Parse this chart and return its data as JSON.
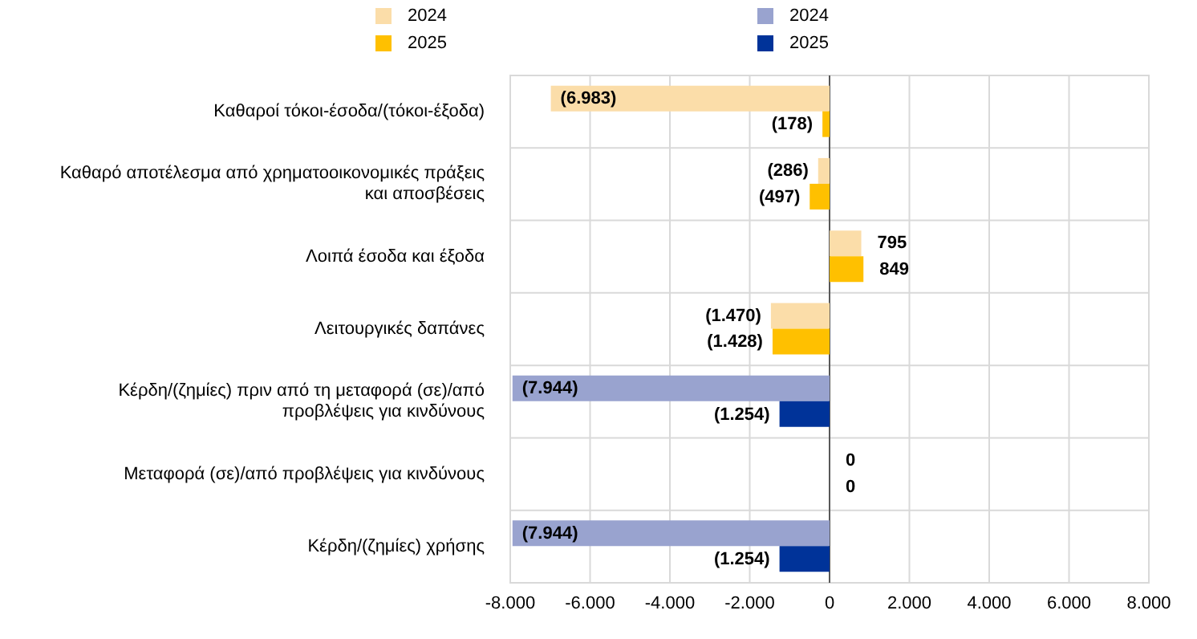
{
  "chart_data": {
    "type": "bar",
    "orientation": "horizontal",
    "categories": [
      "Καθαροί τόκοι-έσοδα/(τόκοι-έξοδα)",
      "Καθαρό αποτέλεσμα από χρηματοοικονομικές πράξεις και αποσβέσεις",
      "Λοιπά έσοδα και έξοδα",
      "Λειτουργικές δαπάνες",
      "Κέρδη/(ζημίες) πριν από τη μεταφορά (σε)/από προβλέψεις για κινδύνους",
      "Μεταφορά (σε)/από προβλέψεις για κινδύνους",
      "Κέρδη/(ζημίες) χρήσης"
    ],
    "series": [
      {
        "name": "2024",
        "color": "#fbdda9",
        "values": [
          -6983,
          -286,
          795,
          -1470,
          null,
          null,
          null
        ],
        "value_labels": [
          "(6.983)",
          "(286)",
          "795",
          "(1.470)",
          null,
          null,
          null
        ]
      },
      {
        "name": "2025",
        "color": "#ffc000",
        "values": [
          -178,
          -497,
          849,
          -1428,
          null,
          null,
          null
        ],
        "value_labels": [
          "(178)",
          "(497)",
          "849",
          "(1.428)",
          null,
          null,
          null
        ]
      },
      {
        "name": "2024",
        "color": "#99a3cf",
        "values": [
          null,
          null,
          null,
          null,
          -7944,
          0,
          -7944
        ],
        "value_labels": [
          null,
          null,
          null,
          null,
          "(7.944)",
          "0",
          "(7.944)"
        ]
      },
      {
        "name": "2025",
        "color": "#003399",
        "values": [
          null,
          null,
          null,
          null,
          -1254,
          0,
          -1254
        ],
        "value_labels": [
          null,
          null,
          null,
          null,
          "(1.254)",
          "0",
          "(1.254)"
        ]
      }
    ],
    "xlim": [
      -8000,
      8000
    ],
    "xticks": [
      {
        "value": -8000,
        "label": "-8.000"
      },
      {
        "value": -6000,
        "label": "-6.000"
      },
      {
        "value": -4000,
        "label": "-4.000"
      },
      {
        "value": -2000,
        "label": "-2.000"
      },
      0,
      {
        "value": 2000,
        "label": "2.000"
      },
      {
        "value": 4000,
        "label": "4.000"
      },
      {
        "value": 6000,
        "label": "6.000"
      },
      {
        "value": 8000,
        "label": "8.000"
      }
    ],
    "grid": true,
    "legend": "top"
  }
}
